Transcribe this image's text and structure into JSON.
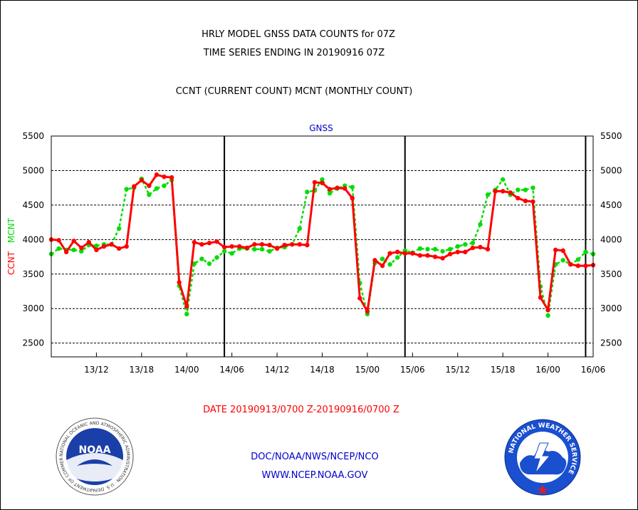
{
  "header": {
    "title_line1": "HRLY MODEL GNSS DATA COUNTS for 07Z",
    "title_line2": "TIME SERIES ENDING IN 20190916 07Z",
    "subtitle": "CCNT (CURRENT COUNT) MCNT (MONTHLY COUNT)"
  },
  "footer": {
    "date_range": "DATE 20190913/0700 Z-20190916/0700 Z",
    "org_line": "DOC/NOAA/NWS/NCEP/NCO",
    "url_line": "WWW.NCEP.NOAA.GOV"
  },
  "logos": {
    "noaa_text": "NOAA",
    "noaa_ring_text": "NATIONAL OCEANIC AND ATMOSPHERIC ADMINISTRATION · U.S. DEPARTMENT OF COMMERCE",
    "nws_ring_text": "NATIONAL WEATHER SERVICE"
  },
  "colors": {
    "ccnt": "#ff0000",
    "mcnt": "#00dd00",
    "text": "#000000",
    "panel_label": "#0000cc",
    "footer_date": "#ff0000",
    "footer_org": "#0000cc"
  },
  "chart_data": {
    "type": "line",
    "title": "GNSS",
    "ylabel_left_parts": [
      {
        "text": "CCNT",
        "color": "#ff0000"
      },
      {
        "text": "MCNT",
        "color": "#00dd00"
      }
    ],
    "ylim": [
      2300,
      5500
    ],
    "yticks": [
      2500,
      3000,
      3500,
      4000,
      4500,
      5000,
      5500
    ],
    "xlim": [
      0,
      72
    ],
    "xticks": [
      {
        "x": 6,
        "label": "13/12"
      },
      {
        "x": 12,
        "label": "13/18"
      },
      {
        "x": 18,
        "label": "14/00"
      },
      {
        "x": 24,
        "label": "14/06"
      },
      {
        "x": 30,
        "label": "14/12"
      },
      {
        "x": 36,
        "label": "14/18"
      },
      {
        "x": 42,
        "label": "15/00"
      },
      {
        "x": 48,
        "label": "15/06"
      },
      {
        "x": 54,
        "label": "15/12"
      },
      {
        "x": 60,
        "label": "15/18"
      },
      {
        "x": 66,
        "label": "16/00"
      },
      {
        "x": 72,
        "label": "16/06"
      }
    ],
    "x_note": "x = hours since 20190913/0700 Z",
    "day_dividers": [
      23,
      47,
      71
    ],
    "grid": true,
    "series": [
      {
        "name": "CCNT",
        "color": "#ff0000",
        "values": [
          [
            0,
            4000
          ],
          [
            1,
            3990
          ],
          [
            2,
            3820
          ],
          [
            3,
            3980
          ],
          [
            4,
            3880
          ],
          [
            5,
            3960
          ],
          [
            6,
            3850
          ],
          [
            7,
            3900
          ],
          [
            8,
            3930
          ],
          [
            9,
            3870
          ],
          [
            10,
            3900
          ],
          [
            11,
            4770
          ],
          [
            12,
            4860
          ],
          [
            13,
            4780
          ],
          [
            14,
            4940
          ],
          [
            15,
            4910
          ],
          [
            16,
            4900
          ],
          [
            17,
            3380
          ],
          [
            18,
            3030
          ],
          [
            19,
            3960
          ],
          [
            20,
            3930
          ],
          [
            21,
            3950
          ],
          [
            22,
            3970
          ],
          [
            23,
            3890
          ],
          [
            24,
            3900
          ],
          [
            25,
            3900
          ],
          [
            26,
            3880
          ],
          [
            27,
            3930
          ],
          [
            28,
            3930
          ],
          [
            29,
            3920
          ],
          [
            30,
            3870
          ],
          [
            31,
            3920
          ],
          [
            32,
            3930
          ],
          [
            33,
            3930
          ],
          [
            34,
            3920
          ],
          [
            35,
            4830
          ],
          [
            36,
            4820
          ],
          [
            37,
            4730
          ],
          [
            38,
            4750
          ],
          [
            39,
            4740
          ],
          [
            40,
            4600
          ],
          [
            41,
            3150
          ],
          [
            42,
            2960
          ],
          [
            43,
            3700
          ],
          [
            44,
            3620
          ],
          [
            45,
            3800
          ],
          [
            46,
            3820
          ],
          [
            47,
            3800
          ],
          [
            48,
            3800
          ],
          [
            49,
            3770
          ],
          [
            50,
            3770
          ],
          [
            51,
            3750
          ],
          [
            52,
            3730
          ],
          [
            53,
            3790
          ],
          [
            54,
            3820
          ],
          [
            55,
            3820
          ],
          [
            56,
            3880
          ],
          [
            57,
            3890
          ],
          [
            58,
            3860
          ],
          [
            59,
            4700
          ],
          [
            60,
            4700
          ],
          [
            61,
            4680
          ],
          [
            62,
            4600
          ],
          [
            63,
            4560
          ],
          [
            64,
            4550
          ],
          [
            65,
            3160
          ],
          [
            66,
            2980
          ],
          [
            67,
            3850
          ],
          [
            68,
            3840
          ],
          [
            69,
            3640
          ],
          [
            70,
            3620
          ],
          [
            71,
            3620
          ],
          [
            72,
            3630
          ]
        ]
      },
      {
        "name": "MCNT",
        "color": "#00dd00",
        "values": [
          [
            0,
            3790
          ],
          [
            1,
            3870
          ],
          [
            2,
            3850
          ],
          [
            3,
            3850
          ],
          [
            4,
            3830
          ],
          [
            5,
            3920
          ],
          [
            6,
            3910
          ],
          [
            7,
            3930
          ],
          [
            8,
            3930
          ],
          [
            9,
            4160
          ],
          [
            10,
            4730
          ],
          [
            11,
            4750
          ],
          [
            12,
            4880
          ],
          [
            13,
            4650
          ],
          [
            14,
            4740
          ],
          [
            15,
            4780
          ],
          [
            16,
            4860
          ],
          [
            17,
            3330
          ],
          [
            18,
            2920
          ],
          [
            19,
            3650
          ],
          [
            20,
            3720
          ],
          [
            21,
            3650
          ],
          [
            22,
            3740
          ],
          [
            23,
            3830
          ],
          [
            24,
            3800
          ],
          [
            25,
            3870
          ],
          [
            26,
            3870
          ],
          [
            27,
            3860
          ],
          [
            28,
            3860
          ],
          [
            29,
            3830
          ],
          [
            30,
            3880
          ],
          [
            31,
            3890
          ],
          [
            32,
            3930
          ],
          [
            33,
            4160
          ],
          [
            34,
            4690
          ],
          [
            35,
            4710
          ],
          [
            36,
            4870
          ],
          [
            37,
            4670
          ],
          [
            38,
            4740
          ],
          [
            39,
            4780
          ],
          [
            40,
            4760
          ],
          [
            41,
            3370
          ],
          [
            42,
            2920
          ],
          [
            43,
            3660
          ],
          [
            44,
            3720
          ],
          [
            45,
            3640
          ],
          [
            46,
            3740
          ],
          [
            47,
            3840
          ],
          [
            48,
            3810
          ],
          [
            49,
            3870
          ],
          [
            50,
            3860
          ],
          [
            51,
            3860
          ],
          [
            52,
            3830
          ],
          [
            53,
            3860
          ],
          [
            54,
            3900
          ],
          [
            55,
            3930
          ],
          [
            56,
            3950
          ],
          [
            57,
            4220
          ],
          [
            58,
            4650
          ],
          [
            59,
            4720
          ],
          [
            60,
            4870
          ],
          [
            61,
            4650
          ],
          [
            62,
            4720
          ],
          [
            63,
            4720
          ],
          [
            64,
            4750
          ],
          [
            65,
            3320
          ],
          [
            66,
            2900
          ],
          [
            67,
            3640
          ],
          [
            68,
            3700
          ],
          [
            69,
            3640
          ],
          [
            70,
            3710
          ],
          [
            71,
            3820
          ],
          [
            72,
            3790
          ]
        ]
      }
    ]
  }
}
